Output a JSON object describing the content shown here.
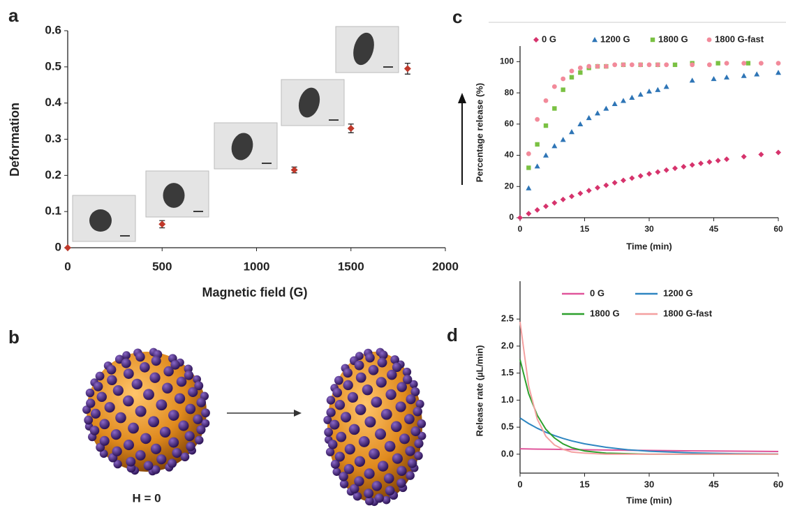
{
  "chart_data": [
    {
      "type": "scatter",
      "panel": "a",
      "xlabel": "Magnetic field (G)",
      "ylabel": "Deformation",
      "x": [
        0,
        500,
        1200,
        1500,
        1800
      ],
      "values": [
        0,
        0.065,
        0.215,
        0.33,
        0.495
      ],
      "errors": [
        0,
        0.01,
        0.008,
        0.012,
        0.015
      ],
      "color": "#c0392b",
      "marker": "diamond",
      "xlim": [
        0,
        2000
      ],
      "xticks": [
        0,
        500,
        1000,
        1500,
        2000
      ],
      "ylim": [
        0,
        0.6
      ],
      "yticks": [
        0,
        0.1,
        0.2,
        0.3,
        0.4,
        0.5,
        0.6
      ]
    },
    {
      "type": "scatter",
      "panel": "c",
      "xlabel": "Time (min)",
      "ylabel": "Percentage release (%)",
      "series": [
        {
          "name": "0 G",
          "color": "#d6336c",
          "marker": "diamond",
          "x": [
            0,
            2,
            4,
            6,
            8,
            10,
            12,
            14,
            16,
            18,
            20,
            22,
            24,
            26,
            28,
            30,
            32,
            34,
            36,
            38,
            40,
            42,
            44,
            46,
            48,
            52,
            56,
            60
          ],
          "values": [
            0,
            2.6,
            5.0,
            7.3,
            9.5,
            11.7,
            13.7,
            15.6,
            17.4,
            19.2,
            20.8,
            22.4,
            23.9,
            25.4,
            26.8,
            28.1,
            29.3,
            30.5,
            31.7,
            32.7,
            33.8,
            34.8,
            35.7,
            36.6,
            37.5,
            39.1,
            40.5,
            41.8
          ]
        },
        {
          "name": "1200 G",
          "color": "#2e75b6",
          "marker": "triangle",
          "x": [
            2,
            4,
            6,
            8,
            10,
            12,
            14,
            16,
            18,
            20,
            22,
            24,
            26,
            28,
            30,
            32,
            34,
            40,
            45,
            48,
            52,
            55,
            60
          ],
          "values": [
            19,
            33,
            40,
            46,
            50,
            55,
            60,
            64,
            67,
            70,
            73,
            75,
            77,
            79,
            81,
            82,
            84,
            88,
            89,
            90,
            91,
            92,
            93
          ]
        },
        {
          "name": "1800 G",
          "color": "#7ac143",
          "marker": "square",
          "x": [
            2,
            4,
            6,
            8,
            10,
            12,
            14,
            16,
            18,
            20,
            24,
            28,
            32,
            36,
            40,
            46,
            53
          ],
          "values": [
            32,
            47,
            59,
            70,
            82,
            90,
            93,
            96,
            97,
            97,
            98,
            98,
            98,
            98,
            99,
            99,
            99
          ]
        },
        {
          "name": "1800 G-fast",
          "color": "#f28a9a",
          "marker": "circle",
          "x": [
            2,
            4,
            6,
            8,
            10,
            12,
            14,
            16,
            18,
            20,
            22,
            24,
            26,
            28,
            30,
            32,
            34,
            40,
            44,
            48,
            52,
            56,
            60
          ],
          "values": [
            41,
            63,
            75,
            84,
            89,
            94,
            96,
            97,
            97,
            97,
            98,
            98,
            98,
            98,
            98,
            98,
            98,
            98,
            98,
            99,
            99,
            99,
            99
          ]
        }
      ],
      "xlim": [
        0,
        60
      ],
      "xticks": [
        0,
        15,
        30,
        45,
        60
      ],
      "ylim": [
        0,
        110
      ],
      "yticks": [
        0,
        20,
        40,
        60,
        80,
        100
      ]
    },
    {
      "type": "line",
      "panel": "d",
      "xlabel": "Time (min)",
      "ylabel": "Release rate (µL/min)",
      "x": [
        0,
        2,
        4,
        6,
        8,
        10,
        12,
        15,
        20,
        25,
        30,
        40,
        50,
        60
      ],
      "series": [
        {
          "name": "0 G",
          "color": "#e0559b",
          "values": [
            0.1,
            0.097,
            0.094,
            0.092,
            0.09,
            0.087,
            0.085,
            0.082,
            0.077,
            0.073,
            0.069,
            0.062,
            0.056,
            0.05
          ]
        },
        {
          "name": "1200 G",
          "color": "#2e86c1",
          "values": [
            0.67,
            0.567,
            0.48,
            0.406,
            0.344,
            0.291,
            0.246,
            0.192,
            0.127,
            0.083,
            0.055,
            0.024,
            0.01,
            0.004
          ]
        },
        {
          "name": "1800 G",
          "color": "#2ca02c",
          "values": [
            1.75,
            1.12,
            0.72,
            0.46,
            0.3,
            0.19,
            0.12,
            0.06,
            0.02,
            0.01,
            0,
            0,
            0,
            0
          ]
        },
        {
          "name": "1800 G-fast",
          "color": "#f4a0a0",
          "values": [
            2.45,
            1.26,
            0.65,
            0.33,
            0.17,
            0.09,
            0.04,
            0.02,
            0,
            0,
            0,
            0,
            0,
            0
          ]
        }
      ],
      "xlim": [
        0,
        60
      ],
      "xticks": [
        0,
        15,
        30,
        45,
        60
      ],
      "ylim": [
        -0.35,
        3.2
      ],
      "yticks": [
        {
          "value": 0,
          "label": "0.0"
        },
        0.5,
        {
          "value": 1,
          "label": "1.0"
        },
        1.5,
        {
          "value": 2,
          "label": "2.0"
        },
        2.5
      ]
    }
  ],
  "diagram": {
    "panel": "b",
    "label": "H = 0"
  }
}
